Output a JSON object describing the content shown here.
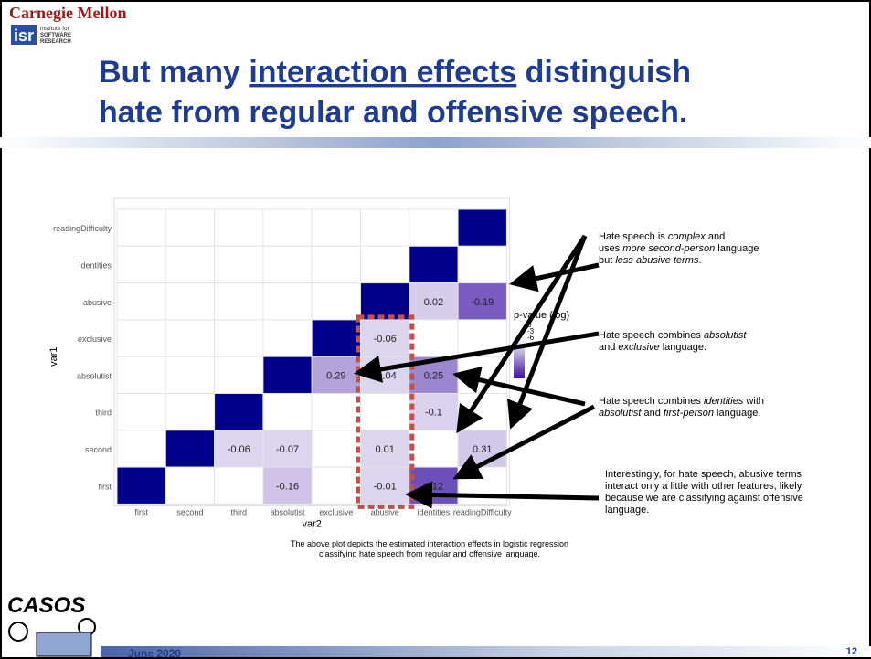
{
  "header": {
    "institution": "Carnegie Mellon",
    "logo": "isr",
    "logo_text": [
      "institute for",
      "SOFTWARE",
      "RESEARCH"
    ]
  },
  "title": {
    "lines": [
      [
        {
          "t": "But many "
        },
        {
          "t": "interaction effects",
          "u": true
        },
        {
          "t": " distinguish"
        }
      ],
      [
        {
          "t": "hate from regular and offensive speech."
        }
      ]
    ],
    "color": "#1f3c8f"
  },
  "heatmap": {
    "y_title": "var1",
    "x_title": "var2",
    "rows": [
      "readingDifficulty",
      "identities",
      "abusive",
      "exclusive",
      "absolutist",
      "third",
      "second",
      "first"
    ],
    "columns": [
      "first",
      "second",
      "third",
      "absolutist",
      "exclusive",
      "abusive",
      "identities",
      "readingDifficulty"
    ],
    "diagonal_color": "#00008b",
    "values": [
      [
        null,
        null,
        null,
        null,
        null,
        null,
        null,
        null
      ],
      [
        null,
        null,
        null,
        null,
        null,
        null,
        null,
        null
      ],
      [
        null,
        null,
        null,
        null,
        null,
        null,
        0.02,
        -0.19
      ],
      [
        null,
        null,
        null,
        null,
        null,
        -0.06,
        null,
        null
      ],
      [
        null,
        null,
        null,
        null,
        0.29,
        -0.04,
        0.25,
        null
      ],
      [
        null,
        null,
        null,
        null,
        null,
        null,
        -0.1,
        null
      ],
      [
        null,
        null,
        -0.06,
        -0.07,
        null,
        0.01,
        null,
        0.31
      ],
      [
        null,
        null,
        null,
        -0.16,
        null,
        -0.01,
        0.12,
        null
      ]
    ],
    "colors": [
      [
        null,
        null,
        null,
        null,
        null,
        null,
        null,
        null
      ],
      [
        null,
        null,
        null,
        null,
        null,
        null,
        null,
        null
      ],
      [
        null,
        null,
        null,
        null,
        null,
        null,
        "#d6cdeb",
        "#7a5cc0"
      ],
      [
        null,
        null,
        null,
        null,
        null,
        "#dcd5ee",
        null,
        null
      ],
      [
        null,
        null,
        null,
        null,
        "#b3a3da",
        "#dcd5ee",
        "#9a87cf",
        null
      ],
      [
        null,
        null,
        null,
        null,
        null,
        null,
        "#d9d1ed",
        null
      ],
      [
        null,
        null,
        "#dcd5ee",
        "#dcd5ee",
        null,
        "#dcd5ee",
        null,
        "#d2c8ea"
      ],
      [
        null,
        null,
        null,
        "#cfc4e8",
        null,
        "#dcd5ee",
        "#6b50b9",
        null
      ]
    ],
    "legend": {
      "title": "p-value (log)",
      "ticks": [
        "0",
        "-3",
        "-6"
      ]
    }
  },
  "annotations": [
    [
      [
        {
          "t": "Hate speech is "
        },
        {
          "t": "complex",
          "em": true
        },
        {
          "t": " and"
        }
      ],
      [
        {
          "t": "uses "
        },
        {
          "t": "more second-person",
          "em": true
        },
        {
          "t": " language"
        }
      ],
      [
        {
          "t": "but "
        },
        {
          "t": "less abusive terms",
          "em": true
        },
        {
          "t": "."
        }
      ]
    ],
    [
      [
        {
          "t": "Hate speech combines "
        },
        {
          "t": "absolutist",
          "em": true
        }
      ],
      [
        {
          "t": "and "
        },
        {
          "t": "exclusive",
          "em": true
        },
        {
          "t": " language."
        }
      ]
    ],
    [
      [
        {
          "t": "Hate speech combines "
        },
        {
          "t": "identities",
          "em": true
        },
        {
          "t": " with"
        }
      ],
      [
        {
          "t": "absolutist",
          "em": true
        },
        {
          "t": " and "
        },
        {
          "t": "first-person",
          "em": true
        },
        {
          "t": " language."
        }
      ]
    ],
    [
      [
        {
          "t": "Interestingly, for hate speech, abusive terms"
        }
      ],
      [
        {
          "t": "interact only a little with other features, likely"
        }
      ],
      [
        {
          "t": "because we are classifying against offensive"
        }
      ],
      [
        {
          "t": "language."
        }
      ]
    ]
  ],
  "caption": [
    "The above plot depicts the estimated interaction effects in logistic regression",
    "classifying hate speech from regular and offensive language."
  ],
  "footer": {
    "logo": "CASOS",
    "date": "June 2020",
    "page": "12"
  }
}
